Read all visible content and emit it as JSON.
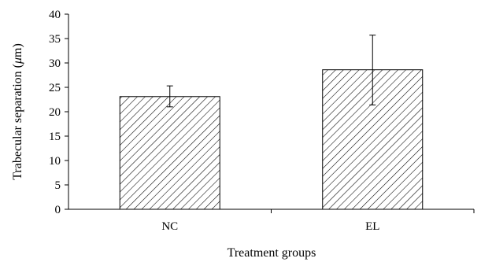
{
  "chart_data": {
    "type": "bar",
    "title": "",
    "xlabel": "Treatment groups",
    "ylabel_prefix": "Trabecular separation (",
    "ylabel_unit_symbol": "μ",
    "ylabel_suffix": "m)",
    "categories": [
      "NC",
      "EL"
    ],
    "values": [
      23.1,
      28.6
    ],
    "error_bars": [
      {
        "low": 21.0,
        "high": 25.3
      },
      {
        "low": 21.4,
        "high": 35.7
      }
    ],
    "ylim": [
      0,
      40
    ],
    "yticks": [
      0,
      5,
      10,
      15,
      20,
      25,
      30,
      35,
      40
    ],
    "ytick_labels": [
      "0",
      "5",
      "10",
      "15",
      "20",
      "25",
      "30",
      "35",
      "40"
    ],
    "grid": false,
    "legend": "none",
    "bar_pattern": "diagonal-hatch",
    "bar_stroke_color": "#000000",
    "bar_fill_color": "#ffffff"
  }
}
